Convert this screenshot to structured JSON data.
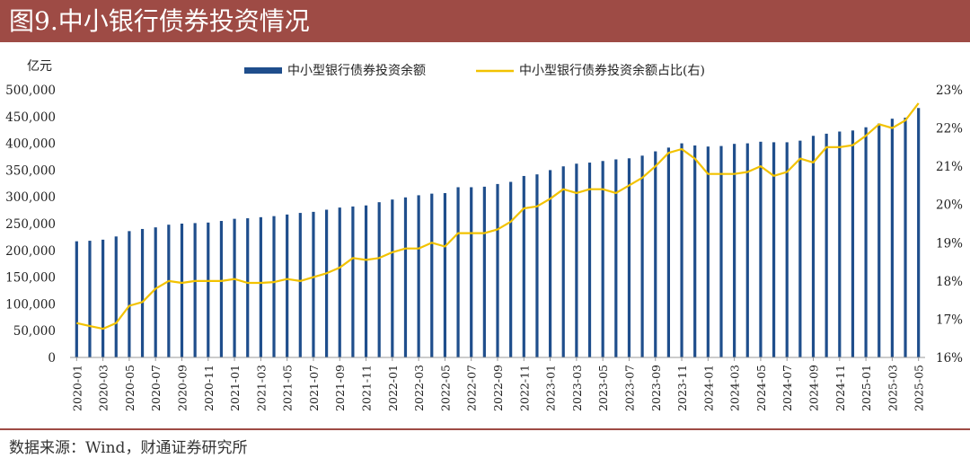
{
  "header": {
    "title": "图9.中小银行债券投资情况"
  },
  "source": {
    "text": "数据来源：Wind，财通证券研究所"
  },
  "colors": {
    "header_bg": "#9e4b45",
    "bar": "#1f4e8c",
    "line": "#f2c200",
    "text": "#222222"
  },
  "chart_data": {
    "type": "bar",
    "title": "",
    "y_unit_left": "亿元",
    "ylim_left": [
      0,
      500000
    ],
    "yticks_left": [
      "500,000",
      "450,000",
      "400,000",
      "350,000",
      "300,000",
      "250,000",
      "200,000",
      "150,000",
      "100,000",
      "50,000",
      "0"
    ],
    "ylim_right": [
      0.16,
      0.23
    ],
    "yticks_right": [
      "23%",
      "22%",
      "21%",
      "20%",
      "19%",
      "18%",
      "17%",
      "16%"
    ],
    "legend_position": "top",
    "grid": false,
    "x_tick_labels": [
      "2020-01",
      "2020-03",
      "2020-05",
      "2020-07",
      "2020-09",
      "2020-11",
      "2021-01",
      "2021-03",
      "2021-05",
      "2021-07",
      "2021-09",
      "2021-11",
      "2022-01",
      "2022-03",
      "2022-05",
      "2022-07",
      "2022-09",
      "2022-11",
      "2023-01",
      "2023-03",
      "2023-05",
      "2023-07",
      "2023-09",
      "2023-11",
      "2024-01",
      "2024-03",
      "2024-05",
      "2024-07",
      "2024-09",
      "2024-11",
      "2025-01",
      "2025-03",
      "2025-05"
    ],
    "categories": [
      "2020-01",
      "2020-02",
      "2020-03",
      "2020-04",
      "2020-05",
      "2020-06",
      "2020-07",
      "2020-08",
      "2020-09",
      "2020-10",
      "2020-11",
      "2020-12",
      "2021-01",
      "2021-02",
      "2021-03",
      "2021-04",
      "2021-05",
      "2021-06",
      "2021-07",
      "2021-08",
      "2021-09",
      "2021-10",
      "2021-11",
      "2021-12",
      "2022-01",
      "2022-02",
      "2022-03",
      "2022-04",
      "2022-05",
      "2022-06",
      "2022-07",
      "2022-08",
      "2022-09",
      "2022-10",
      "2022-11",
      "2022-12",
      "2023-01",
      "2023-02",
      "2023-03",
      "2023-04",
      "2023-05",
      "2023-06",
      "2023-07",
      "2023-08",
      "2023-09",
      "2023-10",
      "2023-11",
      "2023-12",
      "2024-01",
      "2024-02",
      "2024-03",
      "2024-04",
      "2024-05",
      "2024-06",
      "2024-07",
      "2024-08",
      "2024-09",
      "2024-10",
      "2024-11",
      "2024-12",
      "2025-01",
      "2025-02",
      "2025-03",
      "2025-04",
      "2025-05"
    ],
    "series": [
      {
        "name": "中小型银行债券投资余额",
        "type": "bar",
        "axis": "left",
        "values": [
          217000,
          218000,
          220000,
          226000,
          236000,
          240000,
          243000,
          248000,
          250000,
          251000,
          252000,
          255000,
          259000,
          260000,
          262000,
          264000,
          267000,
          270000,
          272000,
          276000,
          280000,
          282000,
          284000,
          290000,
          295000,
          299000,
          303000,
          306000,
          307000,
          318000,
          318000,
          319000,
          324000,
          328000,
          339000,
          342000,
          350000,
          357000,
          362000,
          364000,
          367000,
          370000,
          372000,
          377000,
          385000,
          392000,
          400000,
          396000,
          394000,
          395000,
          399000,
          400000,
          403000,
          402000,
          402000,
          405000,
          414000,
          418000,
          422000,
          424000,
          430000,
          437000,
          446000,
          448000,
          466000
        ]
      },
      {
        "name": "中小型银行债券投资余额占比(右)",
        "type": "line",
        "axis": "right",
        "values": [
          0.169,
          0.1682,
          0.1675,
          0.169,
          0.1735,
          0.1745,
          0.178,
          0.18,
          0.1795,
          0.18,
          0.18,
          0.18,
          0.1805,
          0.1795,
          0.1795,
          0.1797,
          0.1805,
          0.18,
          0.181,
          0.182,
          0.1835,
          0.186,
          0.1855,
          0.186,
          0.1875,
          0.1885,
          0.1885,
          0.19,
          0.189,
          0.1925,
          0.1925,
          0.1925,
          0.1935,
          0.1955,
          0.199,
          0.1995,
          0.2015,
          0.204,
          0.203,
          0.204,
          0.204,
          0.203,
          0.205,
          0.207,
          0.21,
          0.2135,
          0.2145,
          0.212,
          0.208,
          0.208,
          0.208,
          0.2085,
          0.21,
          0.2075,
          0.2085,
          0.212,
          0.211,
          0.215,
          0.215,
          0.2155,
          0.218,
          0.221,
          0.22,
          0.222,
          0.2265
        ]
      }
    ]
  }
}
